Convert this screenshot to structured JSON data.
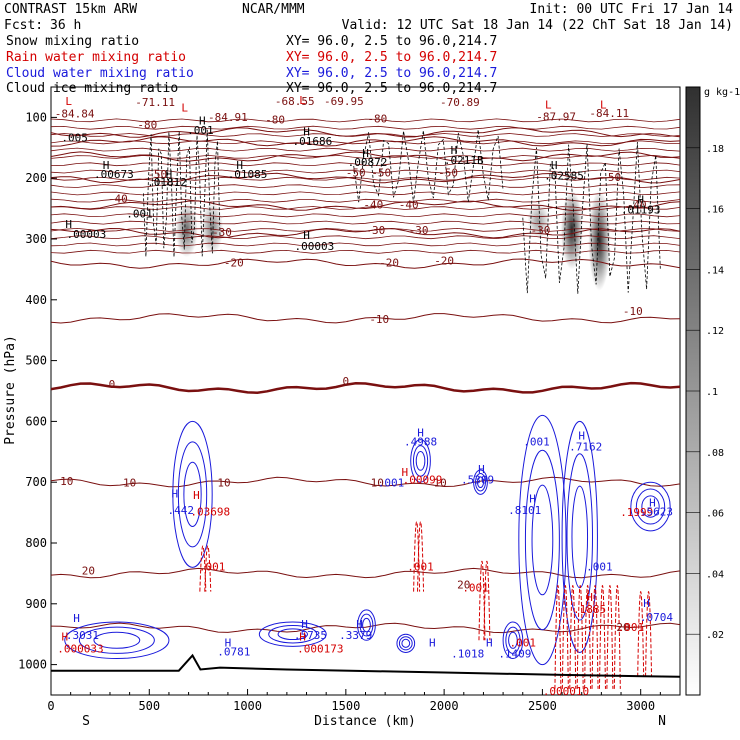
{
  "header": {
    "model": "CONTRAST 15km ARW",
    "center": "NCAR/MMM",
    "init": "Init: 00 UTC Fri 17 Jan 14",
    "fcst_label": "Fcst:",
    "fcst_value": "36 h",
    "valid": "Valid: 12 UTC Sat 18 Jan 14 (22 ChT Sat 18 Jan 14)"
  },
  "fields": [
    {
      "name": "Snow mixing ratio",
      "xy": "",
      "color": "#000000"
    },
    {
      "name": "Rain water mixing ratio",
      "xy": "XY=  96.0,  2.5 to  96.0,214.7",
      "color": "#d40000"
    },
    {
      "name": "Cloud water mixing ratio",
      "xy": "XY=  96.0,  2.5 to  96.0,214.7",
      "color": "#1a1adb"
    },
    {
      "name": "Cloud ice mixing ratio",
      "xy": "XY=  96.0,  2.5 to  96.0,214.7",
      "color": "#000000"
    }
  ],
  "snow_xy": "XY=  96.0,  2.5 to  96.0,214.7",
  "chart_data": {
    "type": "cross-section",
    "xlabel": "Distance (km)",
    "ylabel": "Pressure (hPa)",
    "x_range": [
      0,
      3200
    ],
    "y_range": [
      1050,
      50
    ],
    "x_ticks": [
      0,
      500,
      1000,
      1500,
      2000,
      2500,
      3000
    ],
    "y_ticks": [
      100,
      200,
      300,
      400,
      500,
      600,
      700,
      800,
      900,
      1000
    ],
    "endpoints": {
      "left": "S",
      "right": "N"
    },
    "colorbar": {
      "unit": "g kg-1",
      "ticks": [
        0.02,
        0.04,
        0.06,
        0.08,
        0.1,
        0.12,
        0.14,
        0.16,
        0.18
      ],
      "tick_labels": [
        ".02",
        ".04",
        ".06",
        ".08",
        ".1",
        ".12",
        ".14",
        ".16",
        ".18"
      ]
    },
    "temperature_contours": [
      {
        "value": -80,
        "p": 125
      },
      {
        "value": -70,
        "p": 140
      },
      {
        "value": -60,
        "p": 165
      },
      {
        "value": -50,
        "p": 200
      },
      {
        "value": -40,
        "p": 245
      },
      {
        "value": -30,
        "p": 290
      },
      {
        "value": -20,
        "p": 340
      },
      {
        "value": -10,
        "p": 430
      },
      {
        "value": 0,
        "p": 545
      },
      {
        "value": 10,
        "p": 700
      },
      {
        "value": 20,
        "p": 850
      },
      {
        "value": 30,
        "p": 940
      }
    ],
    "temperature_labels": [
      {
        "text": "-80",
        "x": 490,
        "p": 118
      },
      {
        "text": "-80",
        "x": 1140,
        "p": 110
      },
      {
        "text": "-80",
        "x": 1660,
        "p": 108
      },
      {
        "text": "-50",
        "x": 540,
        "p": 200
      },
      {
        "text": "-50",
        "x": 1550,
        "p": 197
      },
      {
        "text": "-50",
        "x": 1680,
        "p": 197
      },
      {
        "text": "-50",
        "x": 2020,
        "p": 197
      },
      {
        "text": "-50",
        "x": 2850,
        "p": 205
      },
      {
        "text": "-40",
        "x": 340,
        "p": 240
      },
      {
        "text": "-40",
        "x": 1640,
        "p": 250
      },
      {
        "text": "-40",
        "x": 1820,
        "p": 250
      },
      {
        "text": "-40",
        "x": 2980,
        "p": 250
      },
      {
        "text": "-30",
        "x": 870,
        "p": 295
      },
      {
        "text": "-30",
        "x": 1650,
        "p": 292
      },
      {
        "text": "-30",
        "x": 1870,
        "p": 292
      },
      {
        "text": "-30",
        "x": 2490,
        "p": 292
      },
      {
        "text": "-20",
        "x": 930,
        "p": 345
      },
      {
        "text": "-20",
        "x": 1720,
        "p": 345
      },
      {
        "text": "-20",
        "x": 2000,
        "p": 342
      },
      {
        "text": "-10",
        "x": 1670,
        "p": 438
      },
      {
        "text": "-10",
        "x": 2960,
        "p": 425
      },
      {
        "text": "0",
        "x": 310,
        "p": 545
      },
      {
        "text": "0",
        "x": 1500,
        "p": 540
      },
      {
        "text": "10",
        "x": 80,
        "p": 705
      },
      {
        "text": "10",
        "x": 400,
        "p": 707
      },
      {
        "text": "10",
        "x": 880,
        "p": 707
      },
      {
        "text": "10",
        "x": 1660,
        "p": 707
      },
      {
        "text": "10",
        "x": 1980,
        "p": 707
      },
      {
        "text": "20",
        "x": 190,
        "p": 852
      },
      {
        "text": "20",
        "x": 2100,
        "p": 875
      },
      {
        "text": "20",
        "x": 2910,
        "p": 945
      }
    ],
    "min_labels": [
      {
        "text": "-84.84",
        "x": 120,
        "p": 100
      },
      {
        "text": "-71.11",
        "x": 530,
        "p": 81
      },
      {
        "text": "-84.91",
        "x": 900,
        "p": 106
      },
      {
        "text": "-68.55",
        "x": 1240,
        "p": 80
      },
      {
        "text": "-69.95",
        "x": 1490,
        "p": 80
      },
      {
        "text": "-70.89",
        "x": 2080,
        "p": 81
      },
      {
        "text": "-87.97",
        "x": 2570,
        "p": 105
      },
      {
        "text": "-84.11",
        "x": 2840,
        "p": 99
      }
    ],
    "ice_labels": [
      {
        "text": ".005",
        "x": 120,
        "p": 140
      },
      {
        "text": ".001",
        "x": 760,
        "p": 127
      },
      {
        "text": ".01686",
        "x": 1330,
        "p": 145
      },
      {
        "text": ".00673",
        "x": 320,
        "p": 200
      },
      {
        "text": ".01812",
        "x": 590,
        "p": 213
      },
      {
        "text": ".01085",
        "x": 1000,
        "p": 200
      },
      {
        "text": ".00872",
        "x": 1610,
        "p": 180
      },
      {
        "text": ".0211B",
        "x": 2100,
        "p": 177
      },
      {
        "text": ".02585",
        "x": 2610,
        "p": 202
      },
      {
        "text": ".001",
        "x": 450,
        "p": 265
      },
      {
        "text": ".00003",
        "x": 180,
        "p": 298
      },
      {
        "text": ".00003",
        "x": 1340,
        "p": 318
      },
      {
        "text": ".01193",
        "x": 3000,
        "p": 258
      }
    ],
    "rain_labels": [
      {
        "text": ".03698",
        "x": 810,
        "p": 755
      },
      {
        "text": ".001",
        "x": 820,
        "p": 845
      },
      {
        "text": ".00099",
        "x": 1890,
        "p": 702
      },
      {
        "text": ".001",
        "x": 1880,
        "p": 845
      },
      {
        "text": ".001",
        "x": 2160,
        "p": 880
      },
      {
        "text": ".001",
        "x": 2400,
        "p": 970
      },
      {
        "text": ".1885",
        "x": 2740,
        "p": 915
      },
      {
        "text": ".1999",
        "x": 2980,
        "p": 756
      },
      {
        "text": ".000033",
        "x": 150,
        "p": 980
      },
      {
        "text": ".000173",
        "x": 1370,
        "p": 980
      },
      {
        "text": ".000010",
        "x": 2620,
        "p": 1050
      },
      {
        "text": ".001",
        "x": 2950,
        "p": 945
      }
    ],
    "cloud_water_labels": [
      {
        "text": ".442",
        "x": 660,
        "p": 752
      },
      {
        "text": ".4988",
        "x": 1880,
        "p": 640
      },
      {
        "text": ".001",
        "x": 1730,
        "p": 707
      },
      {
        "text": ".5309",
        "x": 2170,
        "p": 702
      },
      {
        "text": ".8101",
        "x": 2410,
        "p": 752
      },
      {
        "text": ".7162",
        "x": 2720,
        "p": 648
      },
      {
        "text": ".5623",
        "x": 3080,
        "p": 755
      },
      {
        "text": ".001",
        "x": 2470,
        "p": 640
      },
      {
        "text": ".001",
        "x": 2790,
        "p": 845
      },
      {
        "text": ".3031",
        "x": 160,
        "p": 958
      },
      {
        "text": ".0781",
        "x": 930,
        "p": 985
      },
      {
        "text": ".5735",
        "x": 1320,
        "p": 958
      },
      {
        "text": ".3379",
        "x": 1550,
        "p": 958
      },
      {
        "text": ".1018",
        "x": 2120,
        "p": 988
      },
      {
        "text": ".1409",
        "x": 2360,
        "p": 988
      },
      {
        "text": ".0704",
        "x": 3080,
        "p": 928
      }
    ],
    "h_marks": [
      {
        "x": 130,
        "p": 930,
        "color": "blue"
      },
      {
        "x": 70,
        "p": 960,
        "color": "red"
      },
      {
        "x": 900,
        "p": 970,
        "color": "blue"
      },
      {
        "x": 1290,
        "p": 940,
        "color": "blue"
      },
      {
        "x": 1280,
        "p": 960,
        "color": "red"
      },
      {
        "x": 1570,
        "p": 940,
        "color": "blue"
      },
      {
        "x": 1940,
        "p": 970,
        "color": "blue"
      },
      {
        "x": 2230,
        "p": 970,
        "color": "blue"
      },
      {
        "x": 630,
        "p": 725,
        "color": "blue"
      },
      {
        "x": 740,
        "p": 728,
        "color": "red"
      },
      {
        "x": 1880,
        "p": 625,
        "color": "blue"
      },
      {
        "x": 1800,
        "p": 690,
        "color": "red"
      },
      {
        "x": 2190,
        "p": 685,
        "color": "blue"
      },
      {
        "x": 2450,
        "p": 733,
        "color": "blue"
      },
      {
        "x": 2700,
        "p": 630,
        "color": "blue"
      },
      {
        "x": 3060,
        "p": 740,
        "color": "blue"
      },
      {
        "x": 2740,
        "p": 895,
        "color": "red"
      },
      {
        "x": 3030,
        "p": 905,
        "color": "blue"
      },
      {
        "x": 90,
        "p": 80,
        "color": "red"
      },
      {
        "x": 680,
        "p": 90,
        "color": "red"
      },
      {
        "x": 1280,
        "p": 78,
        "color": "red"
      },
      {
        "x": 2530,
        "p": 85,
        "color": "red"
      },
      {
        "x": 2810,
        "p": 85,
        "color": "red"
      },
      {
        "x": 770,
        "p": 112,
        "color": "black"
      },
      {
        "x": 1300,
        "p": 130,
        "color": "black"
      },
      {
        "x": 1600,
        "p": 165,
        "color": "black"
      },
      {
        "x": 2050,
        "p": 160,
        "color": "black"
      },
      {
        "x": 280,
        "p": 185,
        "color": "black"
      },
      {
        "x": 600,
        "p": 200,
        "color": "black"
      },
      {
        "x": 960,
        "p": 185,
        "color": "black"
      },
      {
        "x": 2560,
        "p": 185,
        "color": "black"
      },
      {
        "x": 90,
        "p": 282,
        "color": "black"
      },
      {
        "x": 1300,
        "p": 300,
        "color": "black"
      },
      {
        "x": 3000,
        "p": 242,
        "color": "black"
      }
    ],
    "snow_blobs": [
      {
        "x": 690,
        "p_top": 240,
        "p_bot": 330,
        "max": 0.1
      },
      {
        "x": 820,
        "p_top": 240,
        "p_bot": 325,
        "max": 0.08
      },
      {
        "x": 2480,
        "p_top": 240,
        "p_bot": 300,
        "max": 0.06
      },
      {
        "x": 2650,
        "p_top": 220,
        "p_bot": 350,
        "max": 0.16
      },
      {
        "x": 2790,
        "p_top": 220,
        "p_bot": 385,
        "max": 0.18
      }
    ],
    "terrain_p": [
      [
        0,
        1010
      ],
      [
        400,
        1010
      ],
      [
        650,
        1010
      ],
      [
        720,
        985
      ],
      [
        760,
        1008
      ],
      [
        860,
        1005
      ],
      [
        1200,
        1008
      ],
      [
        2000,
        1013
      ],
      [
        2600,
        1017
      ],
      [
        3200,
        1020
      ]
    ]
  }
}
